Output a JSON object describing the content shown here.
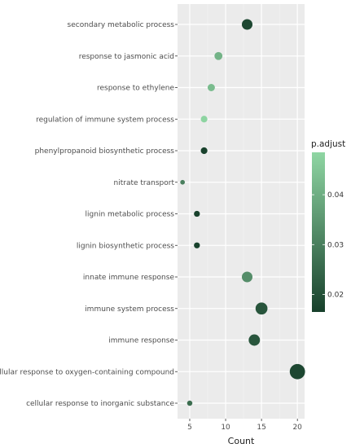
{
  "chart_data": {
    "type": "scatter",
    "xlabel": "Count",
    "ylabel": "",
    "xlim": [
      3.3,
      21.0
    ],
    "x_ticks": [
      5,
      10,
      15,
      20
    ],
    "grid": true,
    "legend": {
      "title": "p.adjust",
      "placement": "right",
      "range": [
        0.0165,
        0.0485
      ],
      "ticks": [
        0.02,
        0.03,
        0.04
      ],
      "tick_labels": [
        "0.02",
        "0.03",
        "0.04"
      ],
      "color_low": "#17402b",
      "color_high": "#8fd6a3"
    },
    "colors": {
      "panel_bg": "#ebebeb",
      "grid_major": "#ffffff",
      "grid_minor": "#f4f4f4"
    },
    "categories": [
      "secondary metabolic process",
      "response to jasmonic acid",
      "response to ethylene",
      "regulation of immune system process",
      "phenylpropanoid biosynthetic process",
      "nitrate transport",
      "lignin metabolic process",
      "lignin biosynthetic process",
      "innate immune response",
      "immune system process",
      "immune response",
      "cellular response to oxygen-containing compound",
      "cellular response to inorganic substance"
    ],
    "points": [
      {
        "term": "secondary metabolic process",
        "count": 13,
        "p_adjust": 0.018
      },
      {
        "term": "response to jasmonic acid",
        "count": 9,
        "p_adjust": 0.041
      },
      {
        "term": "response to ethylene",
        "count": 8,
        "p_adjust": 0.043
      },
      {
        "term": "regulation of immune system process",
        "count": 7,
        "p_adjust": 0.048
      },
      {
        "term": "phenylpropanoid biosynthetic process",
        "count": 7,
        "p_adjust": 0.017
      },
      {
        "term": "nitrate transport",
        "count": 4,
        "p_adjust": 0.03
      },
      {
        "term": "lignin metabolic process",
        "count": 6,
        "p_adjust": 0.017
      },
      {
        "term": "lignin biosynthetic process",
        "count": 6,
        "p_adjust": 0.017
      },
      {
        "term": "innate immune response",
        "count": 13,
        "p_adjust": 0.033
      },
      {
        "term": "immune system process",
        "count": 15,
        "p_adjust": 0.021
      },
      {
        "term": "immune response",
        "count": 14,
        "p_adjust": 0.021
      },
      {
        "term": "cellular response to oxygen-containing compound",
        "count": 20,
        "p_adjust": 0.018
      },
      {
        "term": "cellular response to inorganic substance",
        "count": 5,
        "p_adjust": 0.026
      }
    ]
  }
}
